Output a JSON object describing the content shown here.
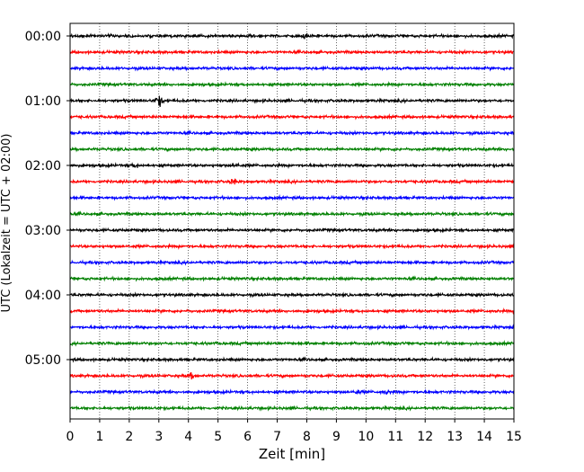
{
  "chart_data": {
    "type": "line",
    "title": "",
    "xlabel": "Zeit  [min]",
    "ylabel": "UTC (Lokalzeit = UTC + 02:00)",
    "xlim": [
      0,
      15
    ],
    "x_ticks": [
      "0",
      "1",
      "2",
      "3",
      "4",
      "5",
      "6",
      "7",
      "8",
      "9",
      "10",
      "11",
      "12",
      "13",
      "14",
      "15"
    ],
    "y_ticks": [
      "00:00",
      "01:00",
      "02:00",
      "03:00",
      "04:00",
      "05:00"
    ],
    "grid": "vertical dotted",
    "legend": "none",
    "series_colors": [
      "#000000",
      "#ff0000",
      "#0000ff",
      "#008000"
    ],
    "trace_start_times": [
      "00:00",
      "00:15",
      "00:30",
      "00:45",
      "01:00",
      "01:15",
      "01:30",
      "01:45",
      "02:00",
      "02:15",
      "02:30",
      "02:45",
      "03:00",
      "03:15",
      "03:30",
      "03:45",
      "04:00",
      "04:15",
      "04:30",
      "04:45",
      "05:00",
      "05:15",
      "05:30",
      "05:45"
    ],
    "trace_minutes": 15,
    "trace_interval_minutes": 15
  }
}
